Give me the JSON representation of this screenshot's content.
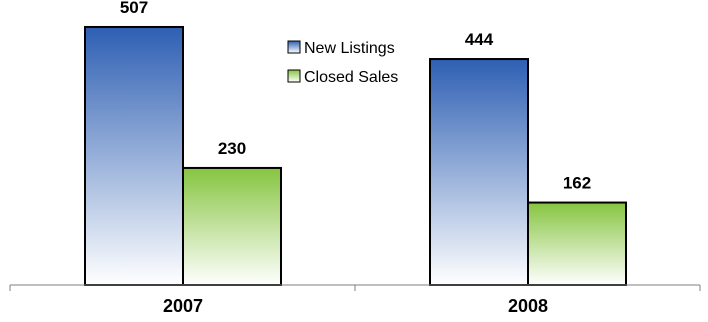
{
  "chart_data": {
    "type": "bar",
    "categories": [
      "2007",
      "2008"
    ],
    "series": [
      {
        "name": "New Listings",
        "values": [
          507,
          444
        ],
        "color": "#2e5fb3"
      },
      {
        "name": "Closed Sales",
        "values": [
          230,
          162
        ],
        "color": "#86c540"
      }
    ],
    "title": "",
    "xlabel": "",
    "ylabel": "",
    "ylim": [
      0,
      560
    ],
    "grid": false,
    "legend_position": "top-center",
    "data_labels": true
  }
}
